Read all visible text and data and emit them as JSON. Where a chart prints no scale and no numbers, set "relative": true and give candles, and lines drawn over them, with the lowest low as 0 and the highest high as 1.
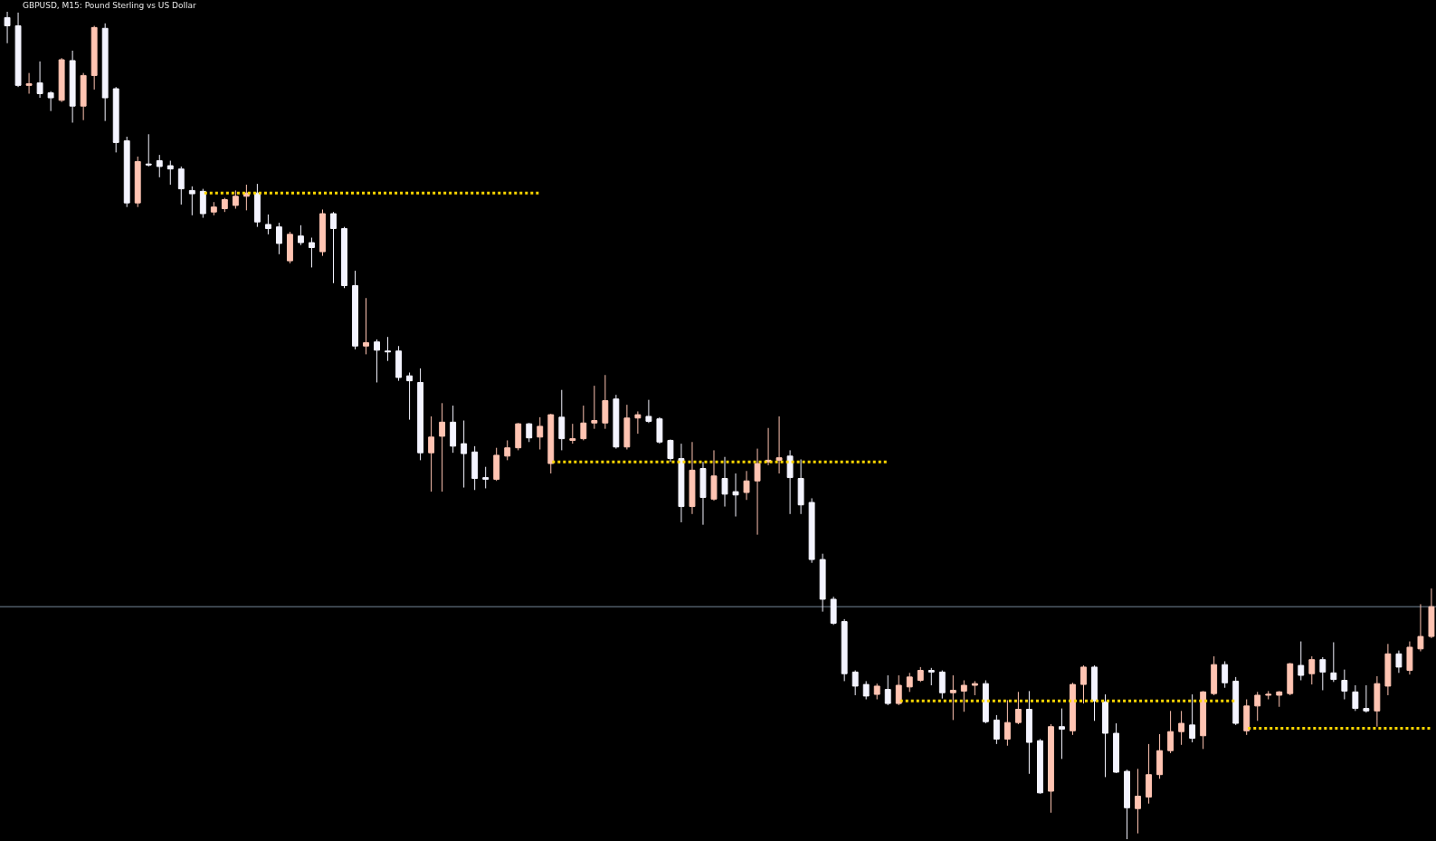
{
  "chart_data": {
    "type": "candlestick",
    "title": "GBPUSD, M15: Pound Sterling vs US Dollar",
    "relative": true,
    "categories": [
      null,
      null,
      null,
      null,
      null,
      null,
      null,
      null,
      null,
      null,
      null,
      null,
      null,
      null,
      null,
      null,
      null,
      null,
      null,
      null,
      null,
      null,
      null,
      null,
      null,
      null,
      null,
      null,
      null,
      null,
      null,
      null,
      null,
      null,
      null,
      null,
      null,
      null,
      null,
      null,
      null,
      null,
      null,
      null,
      null,
      null,
      null,
      null,
      null,
      null,
      null,
      null,
      null,
      null,
      null,
      null,
      null,
      null,
      null,
      null,
      null,
      null,
      null,
      null,
      null,
      null,
      null,
      null,
      null,
      null,
      null,
      null,
      null,
      null,
      null,
      null,
      null,
      null,
      null,
      null,
      null,
      null,
      null,
      null,
      null,
      null,
      null,
      null,
      null,
      null,
      null,
      null,
      null,
      null,
      null,
      null,
      null,
      null,
      null,
      null,
      null,
      null,
      null,
      null,
      null,
      null,
      null,
      null,
      null,
      null,
      null,
      null,
      null,
      null,
      null,
      null,
      null,
      null,
      null,
      null,
      null,
      null,
      null,
      null,
      null,
      null,
      null,
      null,
      null,
      null,
      null,
      null
    ],
    "ohlc": [
      [
        0.993,
        1.0,
        0.962,
        0.983
      ],
      [
        0.983,
        0.999,
        0.909,
        0.911
      ],
      [
        0.911,
        0.926,
        0.901,
        0.913
      ],
      [
        0.914,
        0.94,
        0.896,
        0.901
      ],
      [
        0.902,
        0.904,
        0.88,
        0.896
      ],
      [
        0.893,
        0.944,
        0.891,
        0.942
      ],
      [
        0.941,
        0.953,
        0.866,
        0.886
      ],
      [
        0.886,
        0.926,
        0.869,
        0.923
      ],
      [
        0.923,
        0.983,
        0.906,
        0.981
      ],
      [
        0.98,
        0.986,
        0.868,
        0.896
      ],
      [
        0.907,
        0.909,
        0.83,
        0.842
      ],
      [
        0.844,
        0.849,
        0.764,
        0.769
      ],
      [
        0.769,
        0.825,
        0.764,
        0.819
      ],
      [
        0.816,
        0.852,
        0.813,
        0.815
      ],
      [
        0.82,
        0.827,
        0.8,
        0.813
      ],
      [
        0.814,
        0.82,
        0.791,
        0.81
      ],
      [
        0.81,
        0.813,
        0.767,
        0.786
      ],
      [
        0.784,
        0.789,
        0.754,
        0.78
      ],
      [
        0.783,
        0.786,
        0.751,
        0.756
      ],
      [
        0.758,
        0.77,
        0.754,
        0.764
      ],
      [
        0.762,
        0.775,
        0.758,
        0.773
      ],
      [
        0.766,
        0.784,
        0.762,
        0.777
      ],
      [
        0.777,
        0.791,
        0.76,
        0.781
      ],
      [
        0.781,
        0.792,
        0.74,
        0.746
      ],
      [
        0.743,
        0.755,
        0.731,
        0.738
      ],
      [
        0.74,
        0.745,
        0.707,
        0.72
      ],
      [
        0.699,
        0.734,
        0.696,
        0.731
      ],
      [
        0.729,
        0.742,
        0.718,
        0.721
      ],
      [
        0.721,
        0.727,
        0.691,
        0.715
      ],
      [
        0.71,
        0.761,
        0.705,
        0.756
      ],
      [
        0.756,
        0.758,
        0.672,
        0.738
      ],
      [
        0.738,
        0.74,
        0.666,
        0.669
      ],
      [
        0.669,
        0.687,
        0.592,
        0.596
      ],
      [
        0.596,
        0.654,
        0.586,
        0.6
      ],
      [
        0.601,
        0.604,
        0.552,
        0.591
      ],
      [
        0.59,
        0.607,
        0.578,
        0.589
      ],
      [
        0.59,
        0.596,
        0.554,
        0.558
      ],
      [
        0.56,
        0.564,
        0.507,
        0.554
      ],
      [
        0.552,
        0.569,
        0.458,
        0.467
      ],
      [
        0.467,
        0.511,
        0.42,
        0.486
      ],
      [
        0.487,
        0.527,
        0.42,
        0.504
      ],
      [
        0.504,
        0.524,
        0.467,
        0.475
      ],
      [
        0.478,
        0.506,
        0.425,
        0.466
      ],
      [
        0.468,
        0.475,
        0.422,
        0.436
      ],
      [
        0.437,
        0.45,
        0.424,
        0.435
      ],
      [
        0.435,
        0.473,
        0.433,
        0.464
      ],
      [
        0.463,
        0.482,
        0.458,
        0.473
      ],
      [
        0.473,
        0.503,
        0.47,
        0.502
      ],
      [
        0.502,
        0.503,
        0.48,
        0.485
      ],
      [
        0.486,
        0.51,
        0.471,
        0.499
      ],
      [
        0.454,
        0.514,
        0.442,
        0.513
      ],
      [
        0.51,
        0.543,
        0.47,
        0.484
      ],
      [
        0.482,
        0.502,
        0.478,
        0.484
      ],
      [
        0.484,
        0.524,
        0.482,
        0.503
      ],
      [
        0.503,
        0.548,
        0.496,
        0.506
      ],
      [
        0.503,
        0.561,
        0.496,
        0.53
      ],
      [
        0.532,
        0.537,
        0.472,
        0.474
      ],
      [
        0.474,
        0.525,
        0.471,
        0.509
      ],
      [
        0.509,
        0.517,
        0.49,
        0.513
      ],
      [
        0.511,
        0.531,
        0.503,
        0.505
      ],
      [
        0.508,
        0.51,
        0.478,
        0.48
      ],
      [
        0.482,
        0.483,
        0.456,
        0.46
      ],
      [
        0.46,
        0.478,
        0.383,
        0.402
      ],
      [
        0.402,
        0.48,
        0.393,
        0.446
      ],
      [
        0.448,
        0.456,
        0.38,
        0.413
      ],
      [
        0.411,
        0.47,
        0.409,
        0.439
      ],
      [
        0.436,
        0.462,
        0.402,
        0.417
      ],
      [
        0.42,
        0.442,
        0.39,
        0.416
      ],
      [
        0.419,
        0.445,
        0.41,
        0.433
      ],
      [
        0.433,
        0.472,
        0.368,
        0.454
      ],
      [
        0.456,
        0.497,
        0.452,
        0.458
      ],
      [
        0.458,
        0.511,
        0.442,
        0.461
      ],
      [
        0.463,
        0.47,
        0.393,
        0.437
      ],
      [
        0.436,
        0.459,
        0.393,
        0.404
      ],
      [
        0.407,
        0.412,
        0.334,
        0.338
      ],
      [
        0.338,
        0.345,
        0.275,
        0.29
      ],
      [
        0.29,
        0.293,
        0.259,
        0.261
      ],
      [
        0.263,
        0.266,
        0.191,
        0.2
      ],
      [
        0.202,
        0.204,
        0.174,
        0.185
      ],
      [
        0.187,
        0.191,
        0.169,
        0.173
      ],
      [
        0.175,
        0.188,
        0.169,
        0.185
      ],
      [
        0.181,
        0.198,
        0.162,
        0.164
      ],
      [
        0.164,
        0.198,
        0.162,
        0.186
      ],
      [
        0.184,
        0.201,
        0.178,
        0.196
      ],
      [
        0.192,
        0.208,
        0.19,
        0.204
      ],
      [
        0.204,
        0.207,
        0.186,
        0.202
      ],
      [
        0.202,
        0.204,
        0.17,
        0.177
      ],
      [
        0.177,
        0.198,
        0.144,
        0.18
      ],
      [
        0.179,
        0.192,
        0.154,
        0.186
      ],
      [
        0.186,
        0.191,
        0.174,
        0.188
      ],
      [
        0.188,
        0.192,
        0.14,
        0.142
      ],
      [
        0.144,
        0.15,
        0.115,
        0.121
      ],
      [
        0.121,
        0.168,
        0.113,
        0.141
      ],
      [
        0.141,
        0.178,
        0.139,
        0.157
      ],
      [
        0.157,
        0.179,
        0.079,
        0.117
      ],
      [
        0.119,
        0.121,
        0.055,
        0.056
      ],
      [
        0.058,
        0.139,
        0.032,
        0.136
      ],
      [
        0.136,
        0.158,
        0.097,
        0.133
      ],
      [
        0.131,
        0.189,
        0.126,
        0.187
      ],
      [
        0.187,
        0.21,
        0.164,
        0.208
      ],
      [
        0.208,
        0.21,
        0.143,
        0.167
      ],
      [
        0.166,
        0.175,
        0.075,
        0.128
      ],
      [
        0.128,
        0.14,
        0.08,
        0.081
      ],
      [
        0.082,
        0.084,
        0,
        0.038
      ],
      [
        0.037,
        0.085,
        0.007,
        0.052
      ],
      [
        0.051,
        0.115,
        0.043,
        0.078
      ],
      [
        0.078,
        0.127,
        0.073,
        0.107
      ],
      [
        0.107,
        0.155,
        0.104,
        0.13
      ],
      [
        0.13,
        0.155,
        0.114,
        0.14
      ],
      [
        0.138,
        0.175,
        0.117,
        0.122
      ],
      [
        0.125,
        0.179,
        0.109,
        0.178
      ],
      [
        0.176,
        0.221,
        0.174,
        0.211
      ],
      [
        0.211,
        0.215,
        0.183,
        0.189
      ],
      [
        0.191,
        0.196,
        0.138,
        0.14
      ],
      [
        0.131,
        0.169,
        0.126,
        0.161
      ],
      [
        0.161,
        0.178,
        0.143,
        0.174
      ],
      [
        0.174,
        0.179,
        0.169,
        0.175
      ],
      [
        0.174,
        0.179,
        0.16,
        0.178
      ],
      [
        0.176,
        0.213,
        0.174,
        0.212
      ],
      [
        0.21,
        0.239,
        0.192,
        0.198
      ],
      [
        0.2,
        0.221,
        0.187,
        0.217
      ],
      [
        0.217,
        0.22,
        0.18,
        0.202
      ],
      [
        0.201,
        0.238,
        0.19,
        0.193
      ],
      [
        0.192,
        0.205,
        0.169,
        0.179
      ],
      [
        0.178,
        0.186,
        0.155,
        0.158
      ],
      [
        0.158,
        0.186,
        0.153,
        0.155
      ],
      [
        0.155,
        0.197,
        0.136,
        0.188
      ],
      [
        0.185,
        0.236,
        0.174,
        0.224
      ],
      [
        0.224,
        0.228,
        0.201,
        0.208
      ],
      [
        0.204,
        0.239,
        0.199,
        0.232
      ],
      [
        0.23,
        0.284,
        0.227,
        0.245
      ],
      [
        0.245,
        0.303,
        0.243,
        0.281
      ]
    ],
    "colors": [
      "#f4f4ff",
      "#f4f4ff",
      "#ffc4b2",
      "#f4f4ff",
      "#f4f4ff",
      "#ffc4b2",
      "#f4f4ff",
      "#ffc4b2",
      "#ffc4b2",
      "#f4f4ff",
      "#f4f4ff",
      "#f4f4ff",
      "#ffc4b2",
      "#f4f4ff",
      "#f4f4ff",
      "#f4f4ff",
      "#f4f4ff",
      "#f4f4ff",
      "#f4f4ff",
      "#ffc4b2",
      "#ffc4b2",
      "#ffc4b2",
      "#ffc4b2",
      "#f4f4ff",
      "#f4f4ff",
      "#f4f4ff",
      "#ffc4b2",
      "#f4f4ff",
      "#f4f4ff",
      "#ffc4b2",
      "#f4f4ff",
      "#f4f4ff",
      "#f4f4ff",
      "#ffc4b2",
      "#f4f4ff",
      "#f4f4ff",
      "#f4f4ff",
      "#f4f4ff",
      "#f4f4ff",
      "#ffc4b2",
      "#ffc4b2",
      "#f4f4ff",
      "#f4f4ff",
      "#f4f4ff",
      "#f4f4ff",
      "#ffc4b2",
      "#ffc4b2",
      "#ffc4b2",
      "#f4f4ff",
      "#ffc4b2",
      "#ffc4b2",
      "#f4f4ff",
      "#ffc4b2",
      "#ffc4b2",
      "#ffc4b2",
      "#ffc4b2",
      "#f4f4ff",
      "#ffc4b2",
      "#ffc4b2",
      "#f4f4ff",
      "#f4f4ff",
      "#f4f4ff",
      "#f4f4ff",
      "#ffc4b2",
      "#f4f4ff",
      "#ffc4b2",
      "#f4f4ff",
      "#f4f4ff",
      "#ffc4b2",
      "#ffc4b2",
      "#ffc4b2",
      "#ffc4b2",
      "#f4f4ff",
      "#f4f4ff",
      "#f4f4ff",
      "#f4f4ff",
      "#f4f4ff",
      "#f4f4ff",
      "#f4f4ff",
      "#f4f4ff",
      "#ffc4b2",
      "#f4f4ff",
      "#ffc4b2",
      "#ffc4b2",
      "#ffc4b2",
      "#f4f4ff",
      "#f4f4ff",
      "#ffc4b2",
      "#ffc4b2",
      "#ffc4b2",
      "#f4f4ff",
      "#f4f4ff",
      "#ffc4b2",
      "#ffc4b2",
      "#f4f4ff",
      "#f4f4ff",
      "#ffc4b2",
      "#f4f4ff",
      "#ffc4b2",
      "#ffc4b2",
      "#f4f4ff",
      "#f4f4ff",
      "#f4f4ff",
      "#f4f4ff",
      "#ffc4b2",
      "#ffc4b2",
      "#ffc4b2",
      "#ffc4b2",
      "#ffc4b2",
      "#f4f4ff",
      "#ffc4b2",
      "#ffc4b2",
      "#f4f4ff",
      "#f4f4ff",
      "#ffc4b2",
      "#ffc4b2",
      "#ffc4b2",
      "#ffc4b2",
      "#ffc4b2",
      "#f4f4ff",
      "#ffc4b2",
      "#f4f4ff",
      "#f4f4ff",
      "#f4f4ff",
      "#f4f4ff",
      "#f4f4ff",
      "#ffc4b2",
      "#ffc4b2",
      "#f4f4ff",
      "#ffc4b2",
      "#ffc4b2",
      "#ffc4b2"
    ],
    "series": [
      {
        "type": "line",
        "color": "#ffd700",
        "line_style": "dotted",
        "values": [
          null,
          null,
          null,
          null,
          null,
          null,
          null,
          null,
          null,
          null,
          null,
          null,
          null,
          null,
          null,
          null,
          null,
          null,
          0.781,
          0.781,
          0.781,
          0.781,
          0.781,
          0.781,
          0.781,
          0.781,
          0.781,
          0.781,
          0.781,
          0.781,
          0.781,
          0.781,
          0.781,
          0.781,
          0.781,
          0.781,
          0.781,
          0.781,
          0.781,
          0.781,
          0.781,
          0.781,
          0.781,
          0.781,
          0.781,
          0.781,
          0.781,
          0.781,
          0.781,
          0.781,
          null,
          null,
          null,
          null,
          null,
          null,
          null,
          null,
          null,
          null,
          null,
          null,
          null,
          null,
          null,
          null,
          null,
          null,
          null,
          null,
          null,
          null,
          null,
          null,
          null,
          null,
          null,
          null,
          null,
          null,
          null,
          null,
          null,
          null,
          null,
          null,
          null,
          null,
          null,
          null,
          null,
          null,
          null,
          null,
          null,
          null,
          null,
          null,
          null,
          null,
          null,
          null,
          null,
          null,
          null,
          null,
          null,
          null,
          null,
          null,
          null,
          null,
          null,
          null,
          null,
          null,
          null,
          null,
          null,
          null,
          null,
          null,
          null,
          null,
          null,
          null,
          null,
          null,
          null,
          null,
          null,
          null
        ]
      },
      {
        "type": "line",
        "color": "#ffd700",
        "line_style": "dotted",
        "values": [
          null,
          null,
          null,
          null,
          null,
          null,
          null,
          null,
          null,
          null,
          null,
          null,
          null,
          null,
          null,
          null,
          null,
          null,
          null,
          null,
          null,
          null,
          null,
          null,
          null,
          null,
          null,
          null,
          null,
          null,
          null,
          null,
          null,
          null,
          null,
          null,
          null,
          null,
          null,
          null,
          null,
          null,
          null,
          null,
          null,
          null,
          null,
          null,
          null,
          null,
          0.456,
          0.456,
          0.456,
          0.456,
          0.456,
          0.456,
          0.456,
          0.456,
          0.456,
          0.456,
          0.456,
          0.456,
          0.456,
          0.456,
          0.456,
          0.456,
          0.456,
          0.456,
          0.456,
          0.456,
          0.456,
          0.456,
          0.456,
          0.456,
          0.456,
          0.456,
          0.456,
          0.456,
          0.456,
          0.456,
          0.456,
          0.456,
          null,
          null,
          null,
          null,
          null,
          null,
          null,
          null,
          null,
          null,
          null,
          null,
          null,
          null,
          null,
          null,
          null,
          null,
          null,
          null,
          null,
          null,
          null,
          null,
          null,
          null,
          null,
          null,
          null,
          null,
          null,
          null,
          null,
          null,
          null,
          null,
          null,
          null,
          null,
          null,
          null,
          null,
          null,
          null,
          null,
          null,
          null,
          null,
          null,
          null
        ]
      },
      {
        "type": "line",
        "color": "#ffd700",
        "line_style": "dotted",
        "values": [
          null,
          null,
          null,
          null,
          null,
          null,
          null,
          null,
          null,
          null,
          null,
          null,
          null,
          null,
          null,
          null,
          null,
          null,
          null,
          null,
          null,
          null,
          null,
          null,
          null,
          null,
          null,
          null,
          null,
          null,
          null,
          null,
          null,
          null,
          null,
          null,
          null,
          null,
          null,
          null,
          null,
          null,
          null,
          null,
          null,
          null,
          null,
          null,
          null,
          null,
          null,
          null,
          null,
          null,
          null,
          null,
          null,
          null,
          null,
          null,
          null,
          null,
          null,
          null,
          null,
          null,
          null,
          null,
          null,
          null,
          null,
          null,
          null,
          null,
          null,
          null,
          null,
          null,
          null,
          null,
          null,
          null,
          0.167,
          0.167,
          0.167,
          0.167,
          0.167,
          0.167,
          0.167,
          0.167,
          0.167,
          0.167,
          0.167,
          0.167,
          0.167,
          0.167,
          0.167,
          0.167,
          0.167,
          0.167,
          0.167,
          0.167,
          0.167,
          0.167,
          0.167,
          0.167,
          0.167,
          0.167,
          0.167,
          0.167,
          0.167,
          0.167,
          0.167,
          0.167,
          null,
          null,
          null,
          null,
          null,
          null,
          null,
          null,
          null,
          null,
          null,
          null,
          null,
          null,
          null,
          null,
          null,
          null
        ]
      },
      {
        "type": "line",
        "color": "#ffd700",
        "line_style": "dotted",
        "values": [
          null,
          null,
          null,
          null,
          null,
          null,
          null,
          null,
          null,
          null,
          null,
          null,
          null,
          null,
          null,
          null,
          null,
          null,
          null,
          null,
          null,
          null,
          null,
          null,
          null,
          null,
          null,
          null,
          null,
          null,
          null,
          null,
          null,
          null,
          null,
          null,
          null,
          null,
          null,
          null,
          null,
          null,
          null,
          null,
          null,
          null,
          null,
          null,
          null,
          null,
          null,
          null,
          null,
          null,
          null,
          null,
          null,
          null,
          null,
          null,
          null,
          null,
          null,
          null,
          null,
          null,
          null,
          null,
          null,
          null,
          null,
          null,
          null,
          null,
          null,
          null,
          null,
          null,
          null,
          null,
          null,
          null,
          null,
          null,
          null,
          null,
          null,
          null,
          null,
          null,
          null,
          null,
          null,
          null,
          null,
          null,
          null,
          null,
          null,
          null,
          null,
          null,
          null,
          null,
          null,
          null,
          null,
          null,
          null,
          null,
          null,
          null,
          null,
          null,
          0.134,
          0.134,
          0.134,
          0.134,
          0.134,
          0.134,
          0.134,
          0.134,
          0.134,
          0.134,
          0.134,
          0.134,
          0.134,
          0.134,
          0.134,
          0.134,
          0.134,
          0.134
        ]
      }
    ],
    "ref_lines": [
      {
        "axis": "y",
        "value": 0.281,
        "color": "#778899"
      }
    ]
  }
}
